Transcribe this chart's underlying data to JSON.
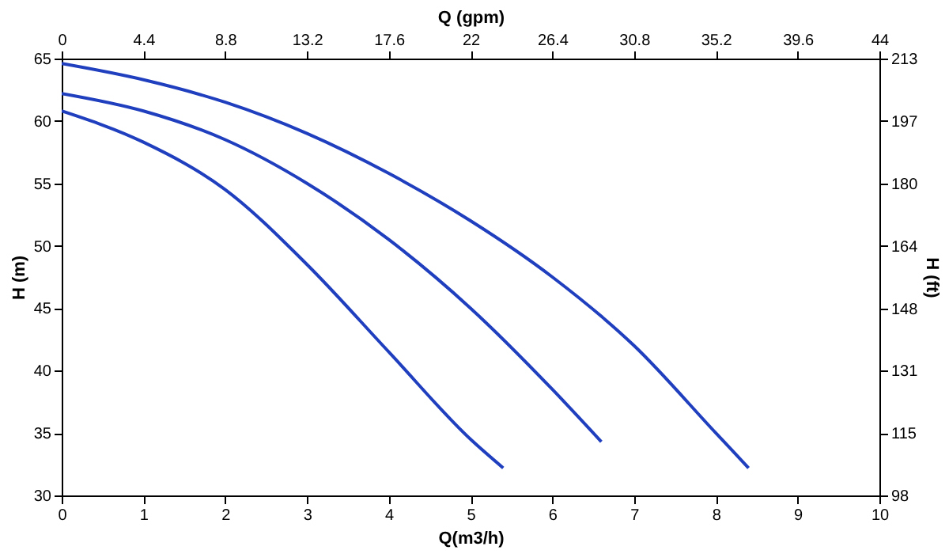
{
  "chart_data": {
    "type": "line",
    "xlabel": "Q(m3/h)",
    "ylabel": "H (m)",
    "x2label": "Q (gpm)",
    "y2label": "H (ft)",
    "xlim": [
      0,
      10
    ],
    "xticks": [
      0,
      1,
      2,
      3,
      4,
      5,
      6,
      7,
      8,
      9,
      10
    ],
    "ylim": [
      30,
      65
    ],
    "yticks": [
      30,
      35,
      40,
      45,
      50,
      55,
      60,
      65
    ],
    "x2lim": [
      0,
      44
    ],
    "x2ticks": [
      0,
      4.4,
      8.8,
      13.2,
      17.6,
      22,
      26.4,
      30.8,
      35.2,
      39.6,
      44
    ],
    "y2lim": [
      98.4,
      213.3
    ],
    "y2ticks": [
      {
        "value": 98.4,
        "label": "98"
      },
      {
        "value": 114.8,
        "label": "115"
      },
      {
        "value": 131.2,
        "label": "131"
      },
      {
        "value": 147.6,
        "label": "148"
      },
      {
        "value": 164.0,
        "label": "164"
      },
      {
        "value": 180.4,
        "label": "180"
      },
      {
        "value": 196.9,
        "label": "197"
      },
      {
        "value": 213.3,
        "label": "213"
      }
    ],
    "grid": false,
    "legend": false,
    "marker": "none",
    "line_style": "solid",
    "series": [
      {
        "color": "#1f3fbf",
        "x": [
          0,
          1,
          2,
          3,
          4,
          5,
          5.4
        ],
        "values": [
          60.8,
          58.3,
          54.5,
          48.5,
          41.5,
          34.5,
          32.2
        ]
      },
      {
        "color": "#1f3fbf",
        "x": [
          0,
          1,
          2,
          3,
          4,
          5,
          6,
          6.6
        ],
        "values": [
          62.2,
          60.8,
          58.5,
          55,
          50.5,
          45,
          38.5,
          34.3
        ]
      },
      {
        "color": "#1f3fbf",
        "x": [
          0,
          1,
          2,
          3,
          4,
          5,
          6,
          7,
          8,
          8.4
        ],
        "values": [
          64.6,
          63.3,
          61.5,
          59,
          55.8,
          52,
          47.5,
          42,
          35,
          32.2
        ]
      }
    ]
  }
}
